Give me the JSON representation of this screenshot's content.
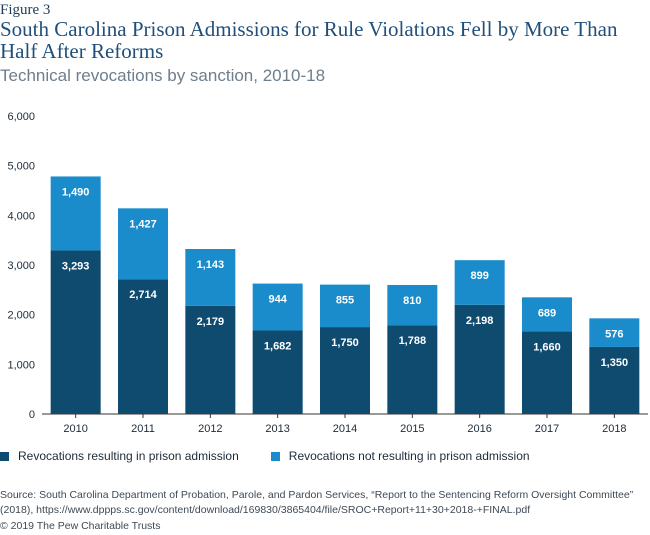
{
  "figure_label": "Figure 3",
  "title": "South Carolina Prison Admissions for Rule Violations Fell by More Than Half After Reforms",
  "subtitle": "Technical revocations by sanction, 2010-18",
  "colors": {
    "prison": "#0f4a6f",
    "not_prison": "#1a8ccb",
    "axis": "#333333",
    "grid": "#cccccc"
  },
  "legend": [
    {
      "label": "Revocations resulting in prison admission",
      "color": "#0f4a6f"
    },
    {
      "label": "Revocations not resulting in prison admission",
      "color": "#1a8ccb"
    }
  ],
  "chart_data": {
    "type": "bar",
    "stacked": true,
    "categories": [
      "2010",
      "2011",
      "2012",
      "2013",
      "2014",
      "2015",
      "2016",
      "2017",
      "2018"
    ],
    "series": [
      {
        "name": "Revocations resulting in prison admission",
        "values": [
          3293,
          2714,
          2179,
          1682,
          1750,
          1788,
          2198,
          1660,
          1350
        ],
        "labels": [
          "3,293",
          "2,714",
          "2,179",
          "1,682",
          "1,750",
          "1,788",
          "2,198",
          "1,660",
          "1,350"
        ]
      },
      {
        "name": "Revocations not resulting in prison admission",
        "values": [
          1490,
          1427,
          1143,
          944,
          855,
          810,
          899,
          689,
          576
        ],
        "labels": [
          "1,490",
          "1,427",
          "1,143",
          "944",
          "855",
          "810",
          "899",
          "689",
          "576"
        ]
      }
    ],
    "ylim": [
      0,
      6000
    ],
    "yticks": [
      0,
      1000,
      2000,
      3000,
      4000,
      5000,
      6000
    ],
    "ytick_labels": [
      "0",
      "1,000",
      "2,000",
      "3,000",
      "4,000",
      "5,000",
      "6,000"
    ],
    "grid": false,
    "legend_position": "bottom"
  },
  "source": "Source: South Carolina Department of Probation, Parole, and Pardon Services, “Report to the Sentencing Reform Oversight Committee” (2018), https://www.dppps.sc.gov/content/download/169830/3865404/file/SROC+Report+11+30+2018-+FINAL.pdf",
  "copyright": "© 2019 The Pew Charitable Trusts"
}
